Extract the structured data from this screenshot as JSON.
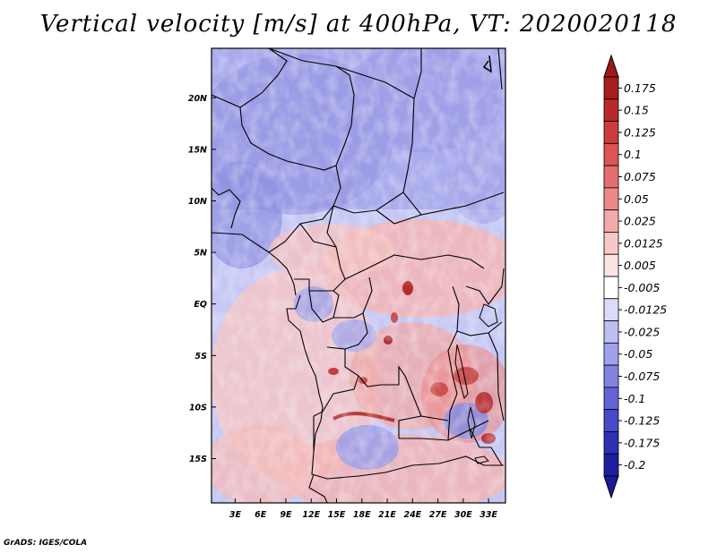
{
  "title": "Vertical velocity [m/s] at 400hPa, VT: 2020020118",
  "credit": "GrADS: IGES/COLA",
  "map": {
    "variable": "Vertical velocity",
    "units": "m/s",
    "level": "400hPa",
    "valid_time": "2020020118",
    "lat_labels": [
      {
        "value": 20,
        "label": "20N"
      },
      {
        "value": 15,
        "label": "15N"
      },
      {
        "value": 10,
        "label": "10N"
      },
      {
        "value": 5,
        "label": "5N"
      },
      {
        "value": 0,
        "label": "EQ"
      },
      {
        "value": -5,
        "label": "5S"
      },
      {
        "value": -10,
        "label": "10S"
      },
      {
        "value": -15,
        "label": "15S"
      }
    ],
    "lon_labels": [
      {
        "value": 3,
        "label": "3E"
      },
      {
        "value": 6,
        "label": "6E"
      },
      {
        "value": 9,
        "label": "9E"
      },
      {
        "value": 12,
        "label": "12E"
      },
      {
        "value": 15,
        "label": "15E"
      },
      {
        "value": 18,
        "label": "18E"
      },
      {
        "value": 21,
        "label": "21E"
      },
      {
        "value": 24,
        "label": "24E"
      },
      {
        "value": 27,
        "label": "27E"
      },
      {
        "value": 30,
        "label": "30E"
      },
      {
        "value": 33,
        "label": "33E"
      }
    ]
  },
  "colorbar": {
    "levels": [
      {
        "label": "0.175",
        "color": "#a51e1e"
      },
      {
        "label": "0.15",
        "color": "#b82a2a"
      },
      {
        "label": "0.125",
        "color": "#cc3c3c"
      },
      {
        "label": "0.1",
        "color": "#dc5454"
      },
      {
        "label": "0.075",
        "color": "#e56e6e"
      },
      {
        "label": "0.05",
        "color": "#ec8a8a"
      },
      {
        "label": "0.025",
        "color": "#f3aaaa"
      },
      {
        "label": "0.0125",
        "color": "#f8c8c8"
      },
      {
        "label": "0.005",
        "color": "#fce4e4"
      },
      {
        "label": "-0.005",
        "color": "#ffffff"
      },
      {
        "label": "-0.0125",
        "color": "#dcdcfa"
      },
      {
        "label": "-0.025",
        "color": "#bebef3"
      },
      {
        "label": "-0.05",
        "color": "#a0a0ec"
      },
      {
        "label": "-0.075",
        "color": "#8282e2"
      },
      {
        "label": "-0.1",
        "color": "#6464d6"
      },
      {
        "label": "-0.125",
        "color": "#4848c8"
      },
      {
        "label": "-0.175",
        "color": "#3030b4"
      },
      {
        "label": "-0.2",
        "color": "#1e1e9e"
      }
    ],
    "top_color": "#9e1a1a",
    "bottom_color": "#1a1a96"
  }
}
